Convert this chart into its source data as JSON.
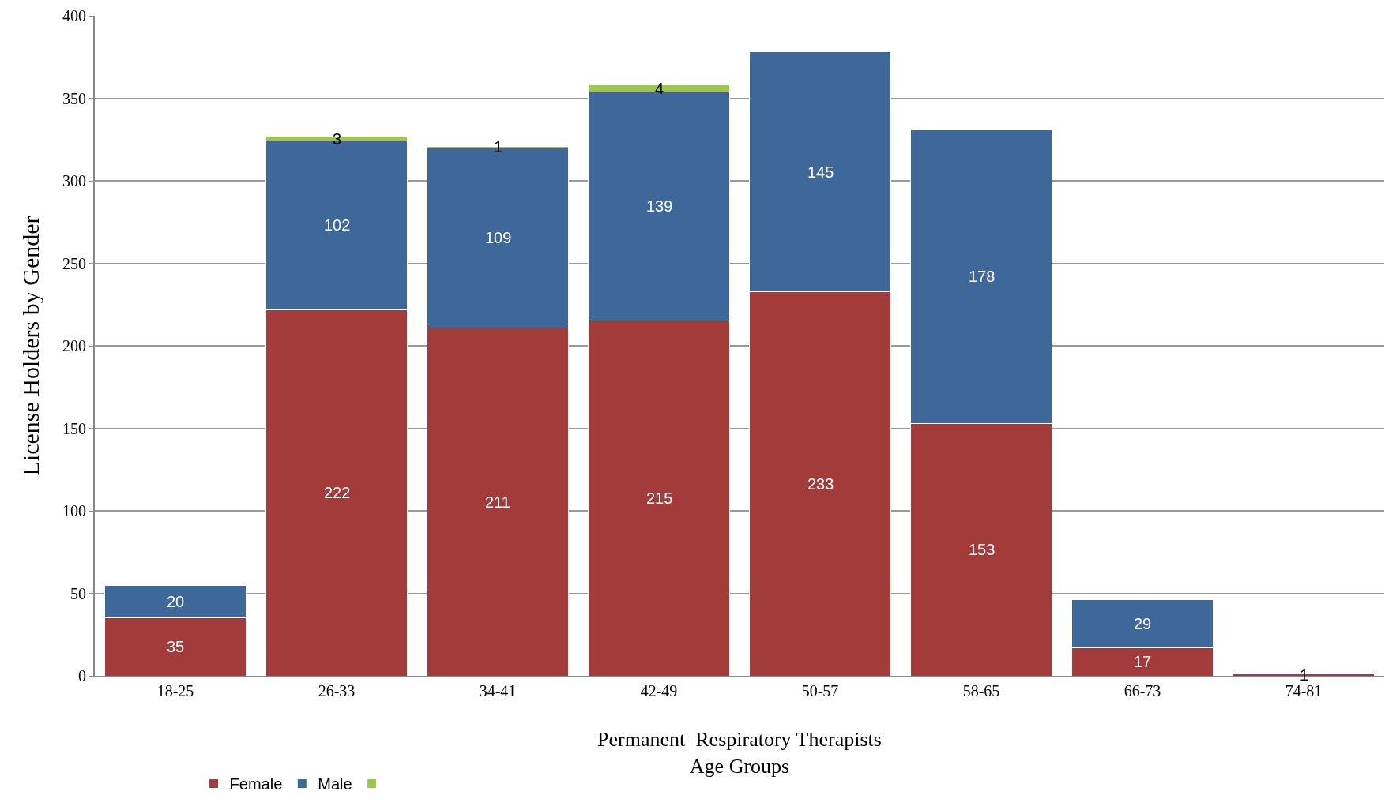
{
  "chart_data": {
    "type": "bar",
    "stacked": true,
    "xlabel": "Permanent  Respiratory Therapists\nAge Groups",
    "ylabel": "License Holders by Gender",
    "categories": [
      "18-25",
      "26-33",
      "34-41",
      "42-49",
      "50-57",
      "58-65",
      "66-73",
      "74-81"
    ],
    "series": [
      {
        "name": "Female",
        "color": "#a33b3a",
        "values": [
          35,
          222,
          211,
          215,
          233,
          153,
          17,
          1
        ],
        "value_labels": [
          "35",
          "222",
          "211",
          "215",
          "233",
          "153",
          "17",
          "1"
        ]
      },
      {
        "name": "Male",
        "color": "#3d6899",
        "values": [
          20,
          102,
          109,
          139,
          145,
          178,
          29,
          1
        ],
        "value_labels": [
          "20",
          "102",
          "109",
          "139",
          "145",
          "178",
          "29",
          null
        ]
      },
      {
        "color": "#9bc84a",
        "values": [
          null,
          3,
          1,
          4,
          null,
          null,
          null,
          null
        ],
        "value_labels": [
          null,
          "3",
          "1",
          "4",
          null,
          null,
          null,
          null
        ]
      }
    ],
    "ylim": [
      0,
      400
    ],
    "yticks": [
      0,
      50,
      100,
      150,
      200,
      250,
      300,
      350,
      400
    ],
    "grid": "y",
    "legend": "bottom left"
  }
}
